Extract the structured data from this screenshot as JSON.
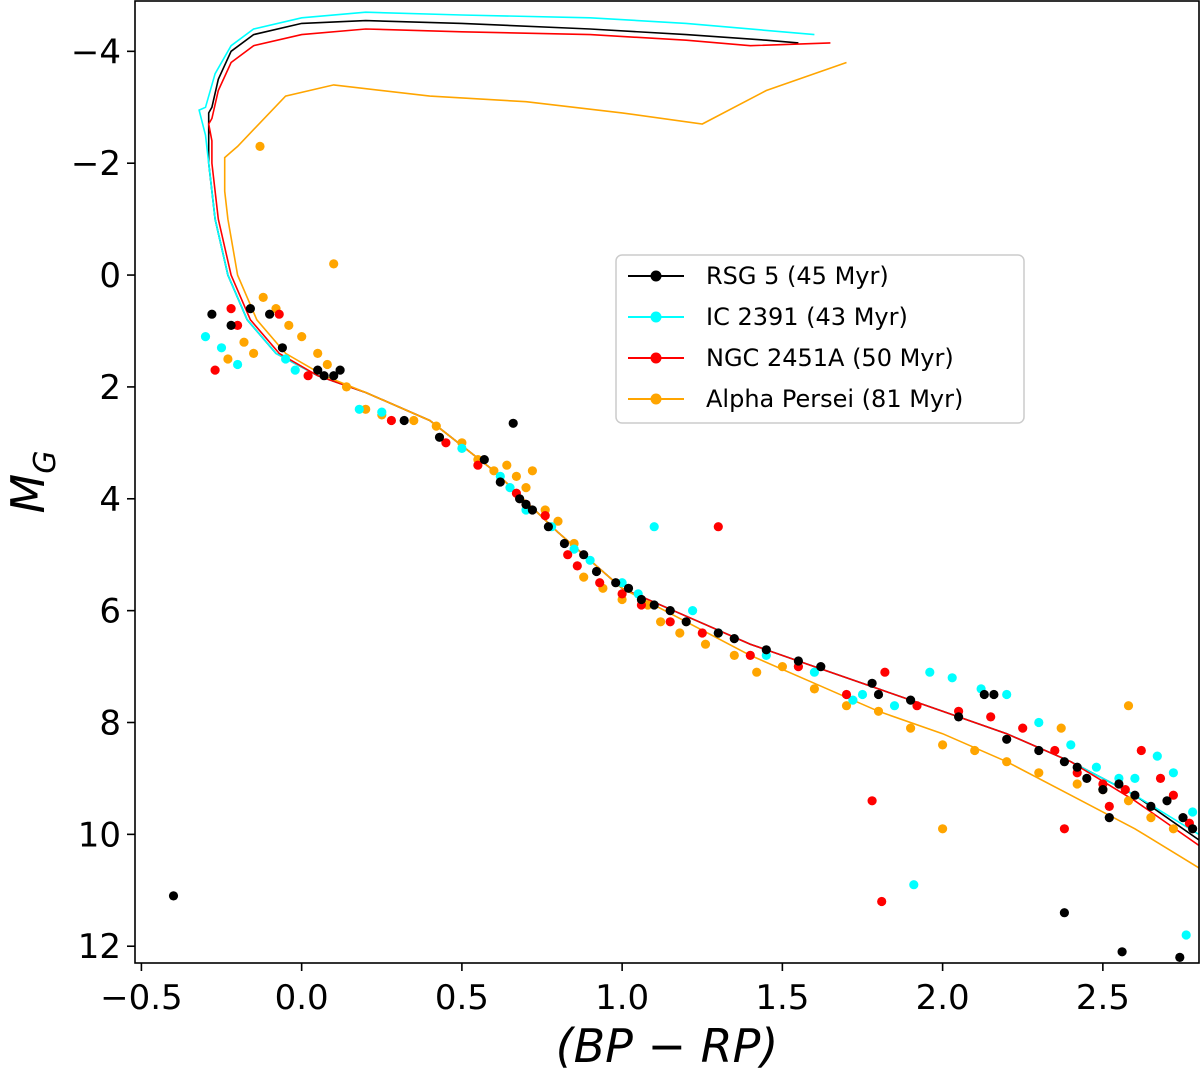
{
  "chart_data": {
    "type": "scatter",
    "title": "",
    "xlabel": "(BP − RP)",
    "ylabel_main": "M",
    "ylabel_sub": "G",
    "xlim": [
      -0.52,
      2.8
    ],
    "ylim": [
      12.3,
      -4.9
    ],
    "y_inverted": true,
    "grid": false,
    "legend_position": "center-right",
    "x_ticks": [
      -0.5,
      0.0,
      0.5,
      1.0,
      1.5,
      2.0,
      2.5
    ],
    "x_tick_labels": [
      "−0.5",
      "0.0",
      "0.5",
      "1.0",
      "1.5",
      "2.0",
      "2.5"
    ],
    "y_ticks": [
      -4,
      -2,
      0,
      2,
      4,
      6,
      8,
      10,
      12
    ],
    "y_tick_labels": [
      "−4",
      "−2",
      "0",
      "2",
      "4",
      "6",
      "8",
      "10",
      "12"
    ],
    "series": [
      {
        "name": "RSG 5 (45 Myr)",
        "color": "#000000",
        "isochrone": [
          [
            1.55,
            -4.15
          ],
          [
            1.45,
            -4.2
          ],
          [
            1.2,
            -4.3
          ],
          [
            0.9,
            -4.4
          ],
          [
            0.5,
            -4.5
          ],
          [
            0.2,
            -4.55
          ],
          [
            0.0,
            -4.5
          ],
          [
            -0.15,
            -4.3
          ],
          [
            -0.22,
            -4.0
          ],
          [
            -0.26,
            -3.5
          ],
          [
            -0.28,
            -3.0
          ],
          [
            -0.29,
            -2.9
          ],
          [
            -0.29,
            -2.5
          ],
          [
            -0.29,
            -2.0
          ],
          [
            -0.27,
            -1.0
          ],
          [
            -0.23,
            0.0
          ],
          [
            -0.17,
            0.8
          ],
          [
            -0.08,
            1.4
          ],
          [
            0.05,
            1.8
          ],
          [
            0.2,
            2.1
          ],
          [
            0.4,
            2.6
          ],
          [
            0.6,
            3.5
          ],
          [
            0.8,
            4.6
          ],
          [
            1.0,
            5.6
          ],
          [
            1.2,
            6.1
          ],
          [
            1.4,
            6.6
          ],
          [
            1.6,
            7.0
          ],
          [
            1.8,
            7.4
          ],
          [
            2.0,
            7.8
          ],
          [
            2.2,
            8.2
          ],
          [
            2.4,
            8.7
          ],
          [
            2.6,
            9.3
          ],
          [
            2.8,
            10.1
          ]
        ],
        "points": [
          [
            -0.28,
            0.7
          ],
          [
            -0.22,
            0.9
          ],
          [
            -0.16,
            0.6
          ],
          [
            -0.1,
            0.7
          ],
          [
            -0.06,
            1.3
          ],
          [
            0.05,
            1.7
          ],
          [
            0.07,
            1.8
          ],
          [
            0.12,
            1.7
          ],
          [
            0.1,
            1.8
          ],
          [
            0.32,
            2.6
          ],
          [
            0.43,
            2.9
          ],
          [
            0.57,
            3.3
          ],
          [
            0.62,
            3.7
          ],
          [
            0.66,
            2.65
          ],
          [
            0.68,
            4.0
          ],
          [
            0.7,
            4.1
          ],
          [
            0.72,
            4.2
          ],
          [
            0.77,
            4.5
          ],
          [
            0.82,
            4.8
          ],
          [
            0.88,
            5.0
          ],
          [
            0.92,
            5.3
          ],
          [
            0.98,
            5.5
          ],
          [
            1.02,
            5.6
          ],
          [
            1.06,
            5.8
          ],
          [
            1.1,
            5.9
          ],
          [
            1.15,
            6.0
          ],
          [
            1.2,
            6.2
          ],
          [
            1.3,
            6.4
          ],
          [
            1.35,
            6.5
          ],
          [
            1.45,
            6.7
          ],
          [
            1.55,
            6.9
          ],
          [
            1.62,
            7.0
          ],
          [
            1.78,
            7.3
          ],
          [
            1.8,
            7.5
          ],
          [
            1.9,
            7.6
          ],
          [
            2.05,
            7.9
          ],
          [
            2.13,
            7.5
          ],
          [
            2.16,
            7.5
          ],
          [
            2.2,
            8.3
          ],
          [
            2.3,
            8.5
          ],
          [
            2.38,
            8.7
          ],
          [
            2.42,
            8.8
          ],
          [
            2.45,
            9.0
          ],
          [
            2.5,
            9.2
          ],
          [
            2.55,
            9.1
          ],
          [
            2.6,
            9.3
          ],
          [
            2.65,
            9.5
          ],
          [
            2.7,
            9.4
          ],
          [
            2.75,
            9.7
          ],
          [
            2.78,
            9.9
          ],
          [
            2.52,
            9.7
          ],
          [
            2.38,
            11.4
          ],
          [
            2.56,
            12.1
          ],
          [
            2.74,
            12.2
          ],
          [
            -0.4,
            11.1
          ]
        ]
      },
      {
        "name": "IC 2391 (43 Myr)",
        "color": "#00ffff",
        "isochrone": [
          [
            1.6,
            -4.3
          ],
          [
            1.5,
            -4.35
          ],
          [
            1.2,
            -4.5
          ],
          [
            0.9,
            -4.6
          ],
          [
            0.5,
            -4.65
          ],
          [
            0.2,
            -4.7
          ],
          [
            0.0,
            -4.6
          ],
          [
            -0.15,
            -4.4
          ],
          [
            -0.22,
            -4.1
          ],
          [
            -0.27,
            -3.6
          ],
          [
            -0.3,
            -3.0
          ],
          [
            -0.32,
            -2.95
          ],
          [
            -0.3,
            -2.5
          ],
          [
            -0.29,
            -2.0
          ],
          [
            -0.27,
            -1.0
          ],
          [
            -0.23,
            0.0
          ],
          [
            -0.17,
            0.8
          ],
          [
            -0.08,
            1.4
          ],
          [
            0.05,
            1.8
          ],
          [
            0.2,
            2.1
          ],
          [
            0.4,
            2.6
          ],
          [
            0.6,
            3.5
          ],
          [
            0.8,
            4.6
          ],
          [
            1.0,
            5.6
          ],
          [
            1.2,
            6.1
          ],
          [
            1.4,
            6.6
          ],
          [
            1.6,
            7.0
          ],
          [
            1.8,
            7.4
          ],
          [
            2.0,
            7.8
          ],
          [
            2.2,
            8.2
          ],
          [
            2.4,
            8.7
          ],
          [
            2.6,
            9.3
          ],
          [
            2.8,
            10.0
          ]
        ],
        "points": [
          [
            -0.3,
            1.1
          ],
          [
            -0.25,
            1.3
          ],
          [
            -0.2,
            1.6
          ],
          [
            -0.05,
            1.5
          ],
          [
            -0.02,
            1.7
          ],
          [
            0.18,
            2.4
          ],
          [
            0.25,
            2.45
          ],
          [
            0.5,
            3.1
          ],
          [
            0.62,
            3.6
          ],
          [
            0.65,
            3.8
          ],
          [
            0.7,
            4.2
          ],
          [
            0.78,
            4.5
          ],
          [
            0.85,
            4.9
          ],
          [
            0.9,
            5.1
          ],
          [
            1.0,
            5.5
          ],
          [
            1.05,
            5.7
          ],
          [
            1.1,
            4.5
          ],
          [
            1.22,
            6.0
          ],
          [
            1.3,
            6.4
          ],
          [
            1.45,
            6.8
          ],
          [
            1.6,
            7.1
          ],
          [
            1.75,
            7.5
          ],
          [
            1.85,
            7.7
          ],
          [
            1.96,
            7.1
          ],
          [
            2.03,
            7.2
          ],
          [
            2.12,
            7.4
          ],
          [
            2.2,
            7.5
          ],
          [
            2.3,
            8.0
          ],
          [
            2.4,
            8.4
          ],
          [
            2.48,
            8.8
          ],
          [
            2.55,
            9.0
          ],
          [
            2.6,
            9.0
          ],
          [
            2.67,
            8.6
          ],
          [
            2.72,
            8.9
          ],
          [
            2.78,
            9.6
          ],
          [
            2.76,
            11.8
          ],
          [
            1.91,
            10.9
          ],
          [
            1.72,
            7.6
          ]
        ]
      },
      {
        "name": "NGC 2451A (50 Myr)",
        "color": "#ff0000",
        "isochrone": [
          [
            1.65,
            -4.15
          ],
          [
            1.4,
            -4.1
          ],
          [
            1.2,
            -4.2
          ],
          [
            0.9,
            -4.3
          ],
          [
            0.5,
            -4.35
          ],
          [
            0.2,
            -4.4
          ],
          [
            0.0,
            -4.3
          ],
          [
            -0.15,
            -4.1
          ],
          [
            -0.22,
            -3.8
          ],
          [
            -0.26,
            -3.3
          ],
          [
            -0.28,
            -2.8
          ],
          [
            -0.29,
            -2.7
          ],
          [
            -0.28,
            -2.4
          ],
          [
            -0.28,
            -2.0
          ],
          [
            -0.26,
            -1.0
          ],
          [
            -0.22,
            0.0
          ],
          [
            -0.16,
            0.8
          ],
          [
            -0.07,
            1.4
          ],
          [
            0.05,
            1.8
          ],
          [
            0.2,
            2.1
          ],
          [
            0.4,
            2.6
          ],
          [
            0.6,
            3.5
          ],
          [
            0.8,
            4.6
          ],
          [
            1.0,
            5.6
          ],
          [
            1.2,
            6.1
          ],
          [
            1.4,
            6.6
          ],
          [
            1.6,
            7.0
          ],
          [
            1.8,
            7.4
          ],
          [
            2.0,
            7.8
          ],
          [
            2.2,
            8.2
          ],
          [
            2.4,
            8.7
          ],
          [
            2.6,
            9.4
          ],
          [
            2.8,
            10.2
          ]
        ],
        "points": [
          [
            -0.27,
            1.7
          ],
          [
            -0.22,
            0.6
          ],
          [
            -0.2,
            0.9
          ],
          [
            -0.07,
            0.7
          ],
          [
            0.02,
            1.8
          ],
          [
            0.28,
            2.6
          ],
          [
            0.45,
            3.0
          ],
          [
            0.55,
            3.4
          ],
          [
            0.67,
            3.9
          ],
          [
            0.7,
            4.1
          ],
          [
            0.76,
            4.3
          ],
          [
            0.83,
            5.0
          ],
          [
            0.86,
            5.2
          ],
          [
            0.93,
            5.5
          ],
          [
            1.0,
            5.7
          ],
          [
            1.06,
            5.9
          ],
          [
            1.15,
            6.2
          ],
          [
            1.25,
            6.4
          ],
          [
            1.3,
            4.5
          ],
          [
            1.4,
            6.8
          ],
          [
            1.55,
            7.0
          ],
          [
            1.7,
            7.5
          ],
          [
            1.82,
            7.1
          ],
          [
            1.92,
            7.7
          ],
          [
            2.05,
            7.8
          ],
          [
            2.15,
            7.9
          ],
          [
            2.25,
            8.1
          ],
          [
            2.35,
            8.5
          ],
          [
            2.42,
            8.9
          ],
          [
            2.5,
            9.1
          ],
          [
            2.57,
            9.2
          ],
          [
            2.62,
            8.5
          ],
          [
            2.68,
            9.0
          ],
          [
            2.72,
            9.3
          ],
          [
            2.77,
            9.8
          ],
          [
            2.52,
            9.5
          ],
          [
            2.38,
            9.9
          ],
          [
            1.78,
            9.4
          ],
          [
            1.81,
            11.2
          ]
        ]
      },
      {
        "name": "Alpha Persei (81 Myr)",
        "color": "#ffa500",
        "isochrone": [
          [
            1.7,
            -3.8
          ],
          [
            1.45,
            -3.3
          ],
          [
            1.25,
            -2.7
          ],
          [
            1.0,
            -2.9
          ],
          [
            0.7,
            -3.1
          ],
          [
            0.4,
            -3.2
          ],
          [
            0.1,
            -3.4
          ],
          [
            -0.05,
            -3.2
          ],
          [
            -0.15,
            -2.6
          ],
          [
            -0.2,
            -2.3
          ],
          [
            -0.22,
            -2.2
          ],
          [
            -0.24,
            -2.1
          ],
          [
            -0.24,
            -1.5
          ],
          [
            -0.23,
            -1.0
          ],
          [
            -0.2,
            0.0
          ],
          [
            -0.14,
            0.8
          ],
          [
            -0.05,
            1.4
          ],
          [
            0.07,
            1.8
          ],
          [
            0.2,
            2.1
          ],
          [
            0.4,
            2.6
          ],
          [
            0.6,
            3.5
          ],
          [
            0.8,
            4.6
          ],
          [
            1.0,
            5.6
          ],
          [
            1.2,
            6.2
          ],
          [
            1.4,
            6.8
          ],
          [
            1.6,
            7.3
          ],
          [
            1.8,
            7.8
          ],
          [
            2.0,
            8.2
          ],
          [
            2.2,
            8.7
          ],
          [
            2.4,
            9.3
          ],
          [
            2.6,
            9.9
          ],
          [
            2.8,
            10.6
          ]
        ],
        "points": [
          [
            -0.23,
            1.5
          ],
          [
            -0.18,
            1.2
          ],
          [
            -0.15,
            1.4
          ],
          [
            -0.13,
            -2.3
          ],
          [
            -0.12,
            0.4
          ],
          [
            -0.08,
            0.6
          ],
          [
            -0.04,
            0.9
          ],
          [
            0.0,
            1.1
          ],
          [
            0.05,
            1.4
          ],
          [
            0.08,
            1.6
          ],
          [
            0.1,
            -0.2
          ],
          [
            0.14,
            2.0
          ],
          [
            0.2,
            2.4
          ],
          [
            0.25,
            2.5
          ],
          [
            0.35,
            2.6
          ],
          [
            0.42,
            2.7
          ],
          [
            0.5,
            3.0
          ],
          [
            0.55,
            3.3
          ],
          [
            0.6,
            3.5
          ],
          [
            0.64,
            3.4
          ],
          [
            0.67,
            3.6
          ],
          [
            0.7,
            3.8
          ],
          [
            0.72,
            3.5
          ],
          [
            0.76,
            4.2
          ],
          [
            0.8,
            4.4
          ],
          [
            0.85,
            4.8
          ],
          [
            0.88,
            5.4
          ],
          [
            0.94,
            5.6
          ],
          [
            1.0,
            5.8
          ],
          [
            1.08,
            5.9
          ],
          [
            1.12,
            6.2
          ],
          [
            1.18,
            6.4
          ],
          [
            1.26,
            6.6
          ],
          [
            1.35,
            6.8
          ],
          [
            1.42,
            7.1
          ],
          [
            1.5,
            7.0
          ],
          [
            1.6,
            7.4
          ],
          [
            1.7,
            7.7
          ],
          [
            1.8,
            7.8
          ],
          [
            1.9,
            8.1
          ],
          [
            2.0,
            8.4
          ],
          [
            2.1,
            8.5
          ],
          [
            2.2,
            8.7
          ],
          [
            2.3,
            8.9
          ],
          [
            2.37,
            8.1
          ],
          [
            2.42,
            9.1
          ],
          [
            2.5,
            9.2
          ],
          [
            2.58,
            9.4
          ],
          [
            2.65,
            9.7
          ],
          [
            2.72,
            9.9
          ],
          [
            2.58,
            7.7
          ],
          [
            2.0,
            9.9
          ]
        ]
      }
    ]
  }
}
